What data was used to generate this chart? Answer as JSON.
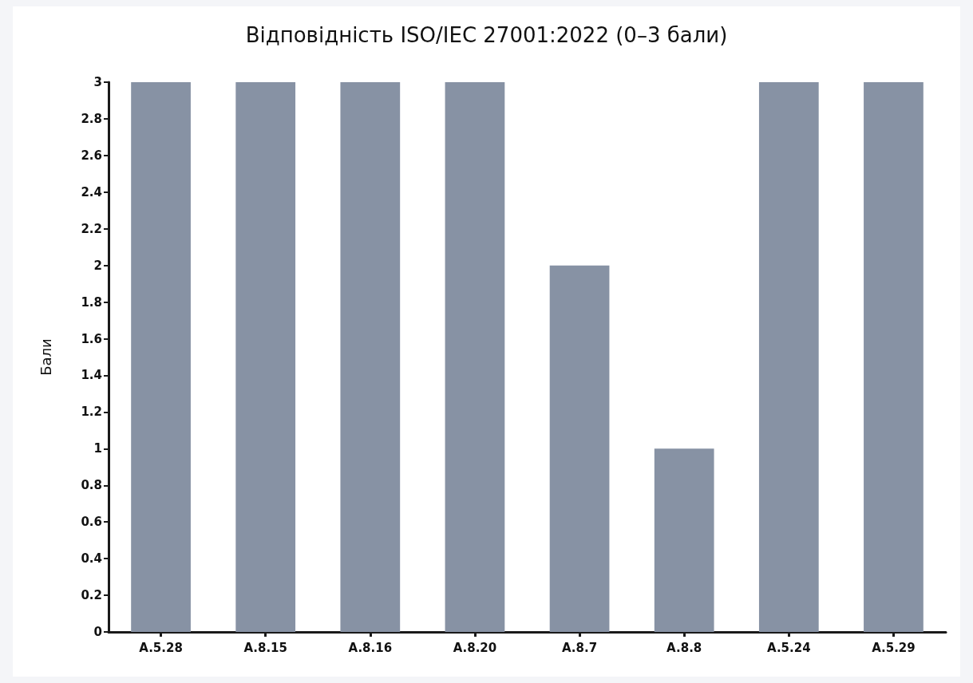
{
  "chart_data": {
    "type": "bar",
    "title": "Відповідність ISO/IEC 27001:2022 (0–3 бали)",
    "ylabel": "Бали",
    "categories": [
      "A.5.28",
      "A.8.15",
      "A.8.16",
      "A.8.20",
      "A.8.7",
      "A.8.8",
      "A.5.24",
      "A.5.29"
    ],
    "values": [
      3,
      3,
      3,
      3,
      2,
      1,
      3,
      3
    ],
    "color": "#8792a4",
    "ylim": [
      0,
      3
    ],
    "yticks": [
      0,
      0.2,
      0.4,
      0.6,
      0.8,
      1,
      1.2,
      1.4,
      1.6,
      1.8,
      2,
      2.2,
      2.4,
      2.6,
      2.8,
      3
    ],
    "grid": false
  }
}
